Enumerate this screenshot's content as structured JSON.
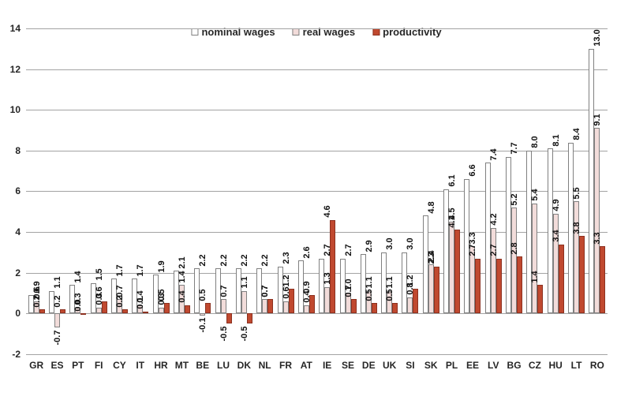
{
  "chart_data": {
    "type": "bar",
    "title": "",
    "xlabel": "",
    "ylabel": "",
    "categories": [
      "GR",
      "ES",
      "PT",
      "FI",
      "CY",
      "IT",
      "HR",
      "MT",
      "BE",
      "LU",
      "DK",
      "NL",
      "FR",
      "AT",
      "IE",
      "SE",
      "DE",
      "UK",
      "SI",
      "SK",
      "PL",
      "EE",
      "LV",
      "BG",
      "CZ",
      "HU",
      "LT",
      "RO"
    ],
    "series": [
      {
        "name": "nominal wages",
        "color": "#ffffff",
        "border": "#808080",
        "values": [
          0.9,
          1.1,
          1.4,
          1.5,
          1.7,
          1.7,
          1.9,
          2.1,
          2.2,
          2.2,
          2.2,
          2.2,
          2.3,
          2.6,
          2.7,
          2.7,
          2.9,
          3.0,
          3.0,
          4.8,
          6.1,
          6.6,
          7.4,
          7.7,
          8.0,
          8.1,
          8.4,
          13.0
        ]
      },
      {
        "name": "real wages",
        "color": "#f2dcda",
        "border": "#808080",
        "values": [
          0.6,
          -0.7,
          0.3,
          0.3,
          0.7,
          0.4,
          0.3,
          1.4,
          -0.1,
          0.7,
          1.1,
          0.7,
          0.6,
          0.4,
          1.3,
          1.0,
          1.1,
          1.1,
          0.8,
          2.4,
          4.5,
          3.3,
          4.2,
          5.2,
          5.4,
          4.9,
          5.5,
          9.1
        ]
      },
      {
        "name": "productivity",
        "color": "#c0492f",
        "border": "#8c3120",
        "values": [
          0.2,
          0.2,
          0.0,
          0.6,
          0.2,
          0.1,
          0.5,
          0.4,
          0.5,
          -0.5,
          -0.5,
          0.7,
          1.2,
          0.9,
          4.6,
          0.7,
          0.5,
          0.5,
          1.2,
          2.3,
          4.1,
          2.7,
          2.7,
          2.8,
          1.4,
          3.4,
          3.8,
          3.3
        ]
      }
    ],
    "ylim": [
      -2,
      14
    ],
    "yticks": [
      -2,
      0,
      2,
      4,
      6,
      8,
      10,
      12,
      14
    ],
    "grid": "horizontal",
    "legend_position": "top-center",
    "value_label_format": "one-decimal-rotated-90",
    "colors": {
      "gridline": "#a3a3a3",
      "axis_text": "#262626",
      "value_label_text": "#111111"
    }
  }
}
